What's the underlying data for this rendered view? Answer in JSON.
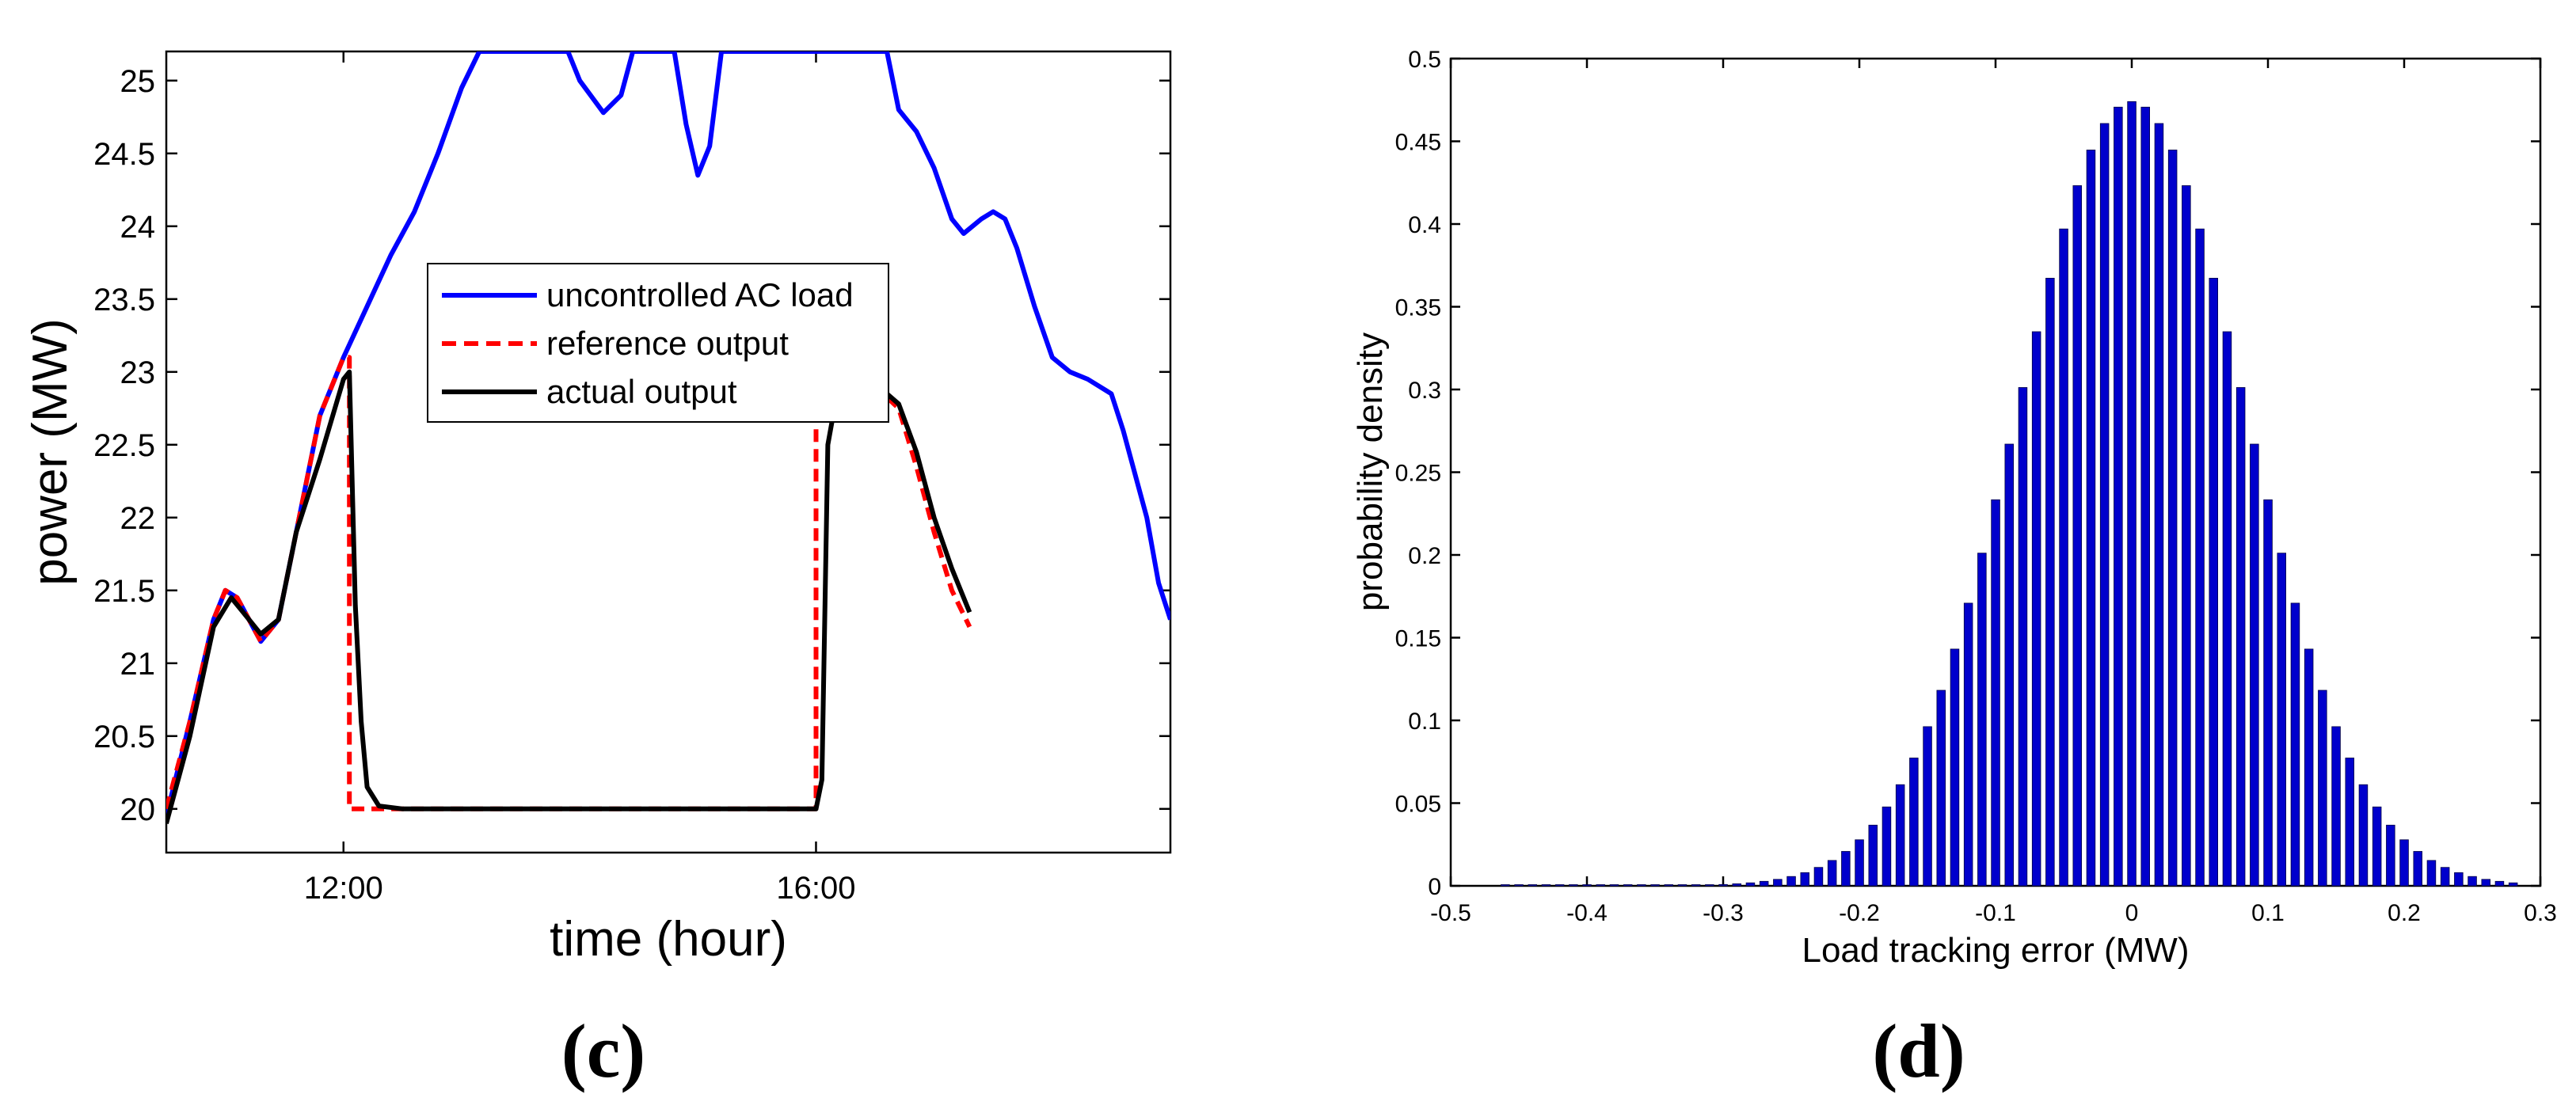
{
  "chart_data": [
    {
      "panel_label": "(c)",
      "type": "line",
      "xlabel": "time (hour)",
      "ylabel": "power (MW)",
      "xlim": [
        10.5,
        19.0
      ],
      "ylim": [
        19.7,
        25.2
      ],
      "x_ticks": [
        {
          "value": 12,
          "label": "12:00"
        },
        {
          "value": 16,
          "label": "16:00"
        }
      ],
      "y_ticks": [
        "20",
        "20.5",
        "21",
        "21.5",
        "22",
        "22.5",
        "23",
        "23.5",
        "24",
        "24.5",
        "25"
      ],
      "grid": false,
      "legend_position": "upper-center",
      "series": [
        {
          "name": "uncontrolled AC load",
          "color": "#0000ff",
          "style": "solid",
          "points": [
            [
              10.5,
              19.95
            ],
            [
              10.7,
              20.6
            ],
            [
              10.9,
              21.3
            ],
            [
              11.0,
              21.5
            ],
            [
              11.1,
              21.45
            ],
            [
              11.3,
              21.15
            ],
            [
              11.45,
              21.3
            ],
            [
              11.6,
              21.9
            ],
            [
              11.8,
              22.7
            ],
            [
              12.0,
              23.1
            ],
            [
              12.2,
              23.45
            ],
            [
              12.4,
              23.8
            ],
            [
              12.6,
              24.1
            ],
            [
              12.8,
              24.5
            ],
            [
              13.0,
              24.95
            ],
            [
              13.15,
              25.2
            ],
            [
              13.9,
              25.2
            ],
            [
              14.0,
              25.0
            ],
            [
              14.2,
              24.78
            ],
            [
              14.35,
              24.9
            ],
            [
              14.45,
              25.2
            ],
            [
              14.8,
              25.2
            ],
            [
              14.9,
              24.7
            ],
            [
              15.0,
              24.35
            ],
            [
              15.1,
              24.55
            ],
            [
              15.2,
              25.2
            ],
            [
              16.6,
              25.2
            ],
            [
              16.7,
              24.8
            ],
            [
              16.85,
              24.65
            ],
            [
              17.0,
              24.4
            ],
            [
              17.15,
              24.05
            ],
            [
              17.25,
              23.95
            ],
            [
              17.4,
              24.05
            ],
            [
              17.5,
              24.1
            ],
            [
              17.6,
              24.05
            ],
            [
              17.7,
              23.85
            ],
            [
              17.85,
              23.45
            ],
            [
              18.0,
              23.1
            ],
            [
              18.15,
              23.0
            ],
            [
              18.3,
              22.95
            ],
            [
              18.5,
              22.85
            ],
            [
              18.6,
              22.6
            ],
            [
              18.8,
              22.0
            ],
            [
              18.9,
              21.55
            ],
            [
              19.0,
              21.3
            ]
          ]
        },
        {
          "name": "reference output",
          "color": "#ff0000",
          "style": "dashed",
          "points": [
            [
              10.5,
              20.0
            ],
            [
              10.7,
              20.6
            ],
            [
              10.9,
              21.3
            ],
            [
              11.0,
              21.5
            ],
            [
              11.1,
              21.45
            ],
            [
              11.3,
              21.15
            ],
            [
              11.45,
              21.3
            ],
            [
              11.6,
              21.9
            ],
            [
              11.8,
              22.7
            ],
            [
              12.0,
              23.1
            ],
            [
              12.05,
              23.1
            ],
            [
              12.05,
              20.0
            ],
            [
              16.0,
              20.0
            ],
            [
              16.0,
              23.3
            ],
            [
              16.15,
              23.05
            ],
            [
              16.3,
              23.0
            ],
            [
              16.5,
              22.9
            ],
            [
              16.7,
              22.75
            ],
            [
              16.85,
              22.35
            ],
            [
              17.0,
              21.9
            ],
            [
              17.15,
              21.5
            ],
            [
              17.3,
              21.25
            ]
          ]
        },
        {
          "name": "actual output",
          "color": "#000000",
          "style": "solid",
          "points": [
            [
              10.5,
              19.9
            ],
            [
              10.7,
              20.5
            ],
            [
              10.9,
              21.25
            ],
            [
              11.05,
              21.45
            ],
            [
              11.15,
              21.35
            ],
            [
              11.3,
              21.2
            ],
            [
              11.45,
              21.3
            ],
            [
              11.6,
              21.9
            ],
            [
              11.8,
              22.4
            ],
            [
              12.0,
              22.95
            ],
            [
              12.05,
              23.0
            ],
            [
              12.1,
              21.4
            ],
            [
              12.15,
              20.6
            ],
            [
              12.2,
              20.15
            ],
            [
              12.3,
              20.02
            ],
            [
              12.5,
              20.0
            ],
            [
              16.0,
              20.0
            ],
            [
              16.05,
              20.2
            ],
            [
              16.1,
              22.5
            ],
            [
              16.2,
              22.95
            ],
            [
              16.3,
              23.0
            ],
            [
              16.5,
              22.92
            ],
            [
              16.7,
              22.78
            ],
            [
              16.85,
              22.45
            ],
            [
              17.0,
              22.0
            ],
            [
              17.15,
              21.65
            ],
            [
              17.3,
              21.35
            ]
          ]
        }
      ]
    },
    {
      "panel_label": "(d)",
      "type": "bar",
      "xlabel": "Load tracking error (MW)",
      "ylabel": "probability density",
      "xlim": [
        -0.5,
        0.3
      ],
      "ylim": [
        0,
        0.5
      ],
      "x_ticks": [
        "-0.5",
        "-0.4",
        "-0.3",
        "-0.2",
        "-0.1",
        "0",
        "0.1",
        "0.2",
        "0.3"
      ],
      "y_ticks": [
        "0",
        "0.05",
        "0.1",
        "0.15",
        "0.2",
        "0.25",
        "0.3",
        "0.35",
        "0.4",
        "0.45",
        "0.5"
      ],
      "grid": false,
      "bar_color": "#0000cc",
      "distribution": {
        "shape": "gaussian",
        "mean": 0.0,
        "std": 0.084,
        "peak": 0.474,
        "x_start": -0.46,
        "x_end": 0.28,
        "bin_width": 0.01
      }
    }
  ]
}
